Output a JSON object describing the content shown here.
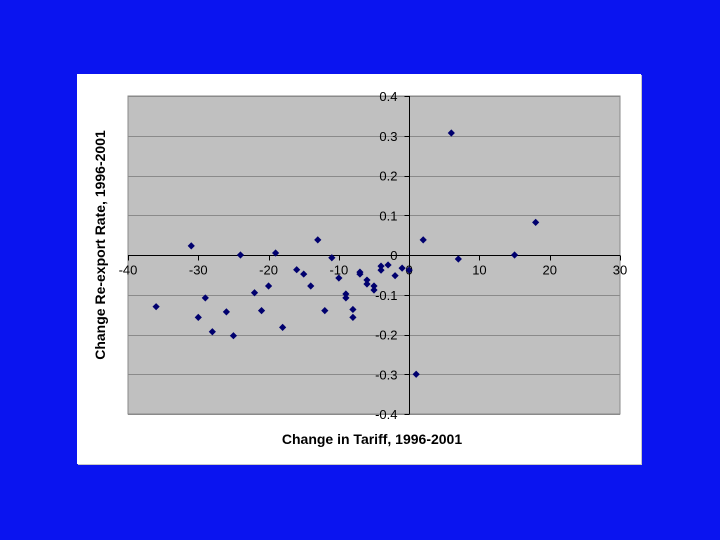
{
  "colors": {
    "background": "#0a14f0",
    "panel": "#ffffff",
    "plot_area": "#c0c0c0",
    "gridline": "#8a8a8a",
    "marker": "#00006e"
  },
  "chart_data": {
    "type": "scatter",
    "xlabel": "Change in Tariff, 1996-2001",
    "ylabel": "Change Re-export Rate, 1996-2001",
    "xlim": [
      -40,
      30
    ],
    "ylim": [
      -0.4,
      0.4
    ],
    "x_ticks": [
      "-40",
      "-30",
      "-20",
      "-10",
      "0",
      "10",
      "20",
      "30"
    ],
    "y_ticks": [
      "-0.4",
      "-0.3",
      "-0.2",
      "-0.1",
      "0",
      "0.1",
      "0.2",
      "0.3",
      "0.4"
    ],
    "x_tick_values": [
      -40,
      -30,
      -20,
      -10,
      0,
      10,
      20,
      30
    ],
    "y_tick_values": [
      -0.4,
      -0.3,
      -0.2,
      -0.1,
      0,
      0.1,
      0.2,
      0.3,
      0.4
    ],
    "grid": "horizontal",
    "legend": "none",
    "marker": "diamond",
    "points": [
      {
        "x": 6.0,
        "y": 0.307
      },
      {
        "x": 18.0,
        "y": 0.082
      },
      {
        "x": 2.0,
        "y": 0.038
      },
      {
        "x": 15.0,
        "y": 0.0
      },
      {
        "x": 7.0,
        "y": -0.01
      },
      {
        "x": 1.0,
        "y": -0.3
      },
      {
        "x": -31.0,
        "y": 0.023
      },
      {
        "x": -24.0,
        "y": 0.0
      },
      {
        "x": -19.0,
        "y": 0.005
      },
      {
        "x": -13.0,
        "y": 0.038
      },
      {
        "x": -11.0,
        "y": -0.007
      },
      {
        "x": -16.0,
        "y": -0.037
      },
      {
        "x": -15.0,
        "y": -0.048
      },
      {
        "x": -14.0,
        "y": -0.078
      },
      {
        "x": -20.0,
        "y": -0.078
      },
      {
        "x": -22.0,
        "y": -0.095
      },
      {
        "x": -29.0,
        "y": -0.108
      },
      {
        "x": -36.0,
        "y": -0.13
      },
      {
        "x": -30.0,
        "y": -0.157
      },
      {
        "x": -26.0,
        "y": -0.143
      },
      {
        "x": -21.0,
        "y": -0.14
      },
      {
        "x": -28.0,
        "y": -0.193
      },
      {
        "x": -25.0,
        "y": -0.203
      },
      {
        "x": -18.0,
        "y": -0.182
      },
      {
        "x": -12.0,
        "y": -0.14
      },
      {
        "x": -10.0,
        "y": -0.058
      },
      {
        "x": -9.0,
        "y": -0.098
      },
      {
        "x": -9.0,
        "y": -0.108
      },
      {
        "x": -8.0,
        "y": -0.137
      },
      {
        "x": -8.0,
        "y": -0.157
      },
      {
        "x": -7.0,
        "y": -0.043
      },
      {
        "x": -7.0,
        "y": -0.048
      },
      {
        "x": -6.0,
        "y": -0.073
      },
      {
        "x": -6.0,
        "y": -0.063
      },
      {
        "x": -5.0,
        "y": -0.078
      },
      {
        "x": -5.0,
        "y": -0.088
      },
      {
        "x": -4.0,
        "y": -0.028
      },
      {
        "x": -4.0,
        "y": -0.038
      },
      {
        "x": -3.0,
        "y": -0.025
      },
      {
        "x": -2.0,
        "y": -0.052
      },
      {
        "x": -1.0,
        "y": -0.033
      },
      {
        "x": 0.0,
        "y": -0.038
      }
    ]
  }
}
